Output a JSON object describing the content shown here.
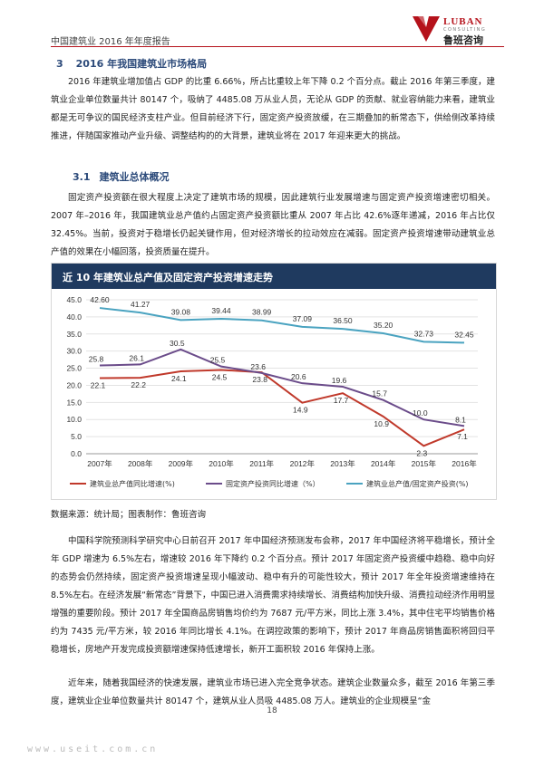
{
  "header": {
    "doc_title": "中国建筑业 2016 年年度报告",
    "logo_en": "LUBAN",
    "logo_en_sub": "CONSULTING",
    "logo_cn": "鲁班咨询",
    "accent_color": "#b5121b"
  },
  "section3": {
    "num": "3",
    "title": "2016 年我国建筑业市场格局",
    "para1": "2016 年建筑业增加值占 GDP 的比重 6.66%，所占比重较上年下降 0.2 个百分点。截止 2016 年第三季度，建筑业企业单位数量共计 80147 个，吸纳了 4485.08 万从业人员，无论从 GDP 的贡献、就业容纳能力来看，建筑业都是无可争议的国民经济支柱产业。但目前经济下行，固定资产投资放缓，在三期叠加的新常态下，供给侧改革持续推进，伴随国家推动产业升级、调整结构的的大背景，建筑业将在 2017 年迎来更大的挑战。"
  },
  "section31": {
    "num": "3.1",
    "title": "建筑业总体概况",
    "para": "固定资产投资额在很大程度上决定了建筑市场的规模，因此建筑行业发展增速与固定资产投资增速密切相关。2007 年–2016 年，我国建筑业总产值约占固定资产投资额比重从 2007 年占比 42.6%逐年递减，2016 年占比仅 32.45%。当前，投资对于稳增长仍起关键作用，但对经济增长的拉动效应在减弱。固定资产投资增速带动建筑业总产值的效果在小幅回落，投资质量在提升。"
  },
  "chart_data": {
    "type": "line",
    "title": "近 10 年建筑业总产值及固定资产投资增速走势",
    "categories": [
      "2007年",
      "2008年",
      "2009年",
      "2010年",
      "2011年",
      "2012年",
      "2013年",
      "2014年",
      "2015年",
      "2016年"
    ],
    "ylim": [
      0,
      45
    ],
    "yticks": [
      "0.0",
      "5.0",
      "10.0",
      "15.0",
      "20.0",
      "25.0",
      "30.0",
      "35.0",
      "40.0",
      "45.0"
    ],
    "series": [
      {
        "name": "建筑业总产值同比增速(%)",
        "color": "#c0392b",
        "values": [
          22.1,
          22.2,
          24.1,
          24.5,
          23.8,
          14.9,
          17.7,
          10.9,
          2.3,
          7.1
        ]
      },
      {
        "name": "固定资产投资同比增速（%）",
        "color": "#6b4c8a",
        "values": [
          25.8,
          26.1,
          30.5,
          25.5,
          23.6,
          20.6,
          19.6,
          15.7,
          10.0,
          8.1
        ]
      },
      {
        "name": "建筑业总产值/固定资产投资(%)",
        "color": "#4aa3c0",
        "values": [
          42.6,
          41.27,
          39.08,
          39.44,
          38.99,
          37.09,
          36.5,
          35.2,
          32.73,
          32.45
        ]
      }
    ],
    "labels": [
      [
        "22.1",
        "22.2",
        "24.1",
        "24.5",
        "23.8",
        "14.9",
        "17.7",
        "10.9",
        "2.3",
        "7.1"
      ],
      [
        "25.8",
        "26.1",
        "30.5",
        "25.5",
        "23.6",
        "20.6",
        "19.6",
        "15.7",
        "10.0",
        "8.1"
      ],
      [
        "42.60",
        "41.27",
        "39.08",
        "39.44",
        "38.99",
        "37.09",
        "36.50",
        "35.20",
        "32.73",
        "32.45"
      ]
    ],
    "legend_position": "bottom"
  },
  "source": "数据来源：统计局；图表制作：鲁班咨询",
  "para3": "中国科学院预测科学研究中心日前召开 2017 年中国经济预测发布会称，2017 年中国经济将平稳增长，预计全年 GDP 增速为 6.5%左右，增速较 2016 年下降约 0.2 个百分点。预计 2017 年固定资产投资缓中趋稳、稳中向好的态势会仍然持续，固定资产投资增速呈现小幅波动、稳中有升的可能性较大，预计 2017 年全年投资增速维持在 8.5%左右。在经济发展“新常态”背景下，中国已进入消费需求持续增长、消费结构加快升级、消费拉动经济作用明显增强的重要阶段。预计 2017 年全国商品房销售均价约为 7687 元/平方米，同比上涨 3.4%，其中住宅平均销售价格约为 7435 元/平方米，较 2016 年同比增长 4.1%。在调控政策的影响下，预计 2017 年商品房销售面积将回归平稳增长，房地产开发完成投资额增速保持低速增长，新开工面积较 2016 年保持上涨。",
  "para4": "近年来，随着我国经济的快速发展，建筑业市场已进入完全竞争状态。建筑企业数量众多，截至 2016 年第三季度，建筑业企业单位数量共计 80147 个，建筑从业人员吸 4485.08 万人。建筑业的企业规模呈“金",
  "page_number": "18",
  "watermark": "www.useit.com.cn"
}
